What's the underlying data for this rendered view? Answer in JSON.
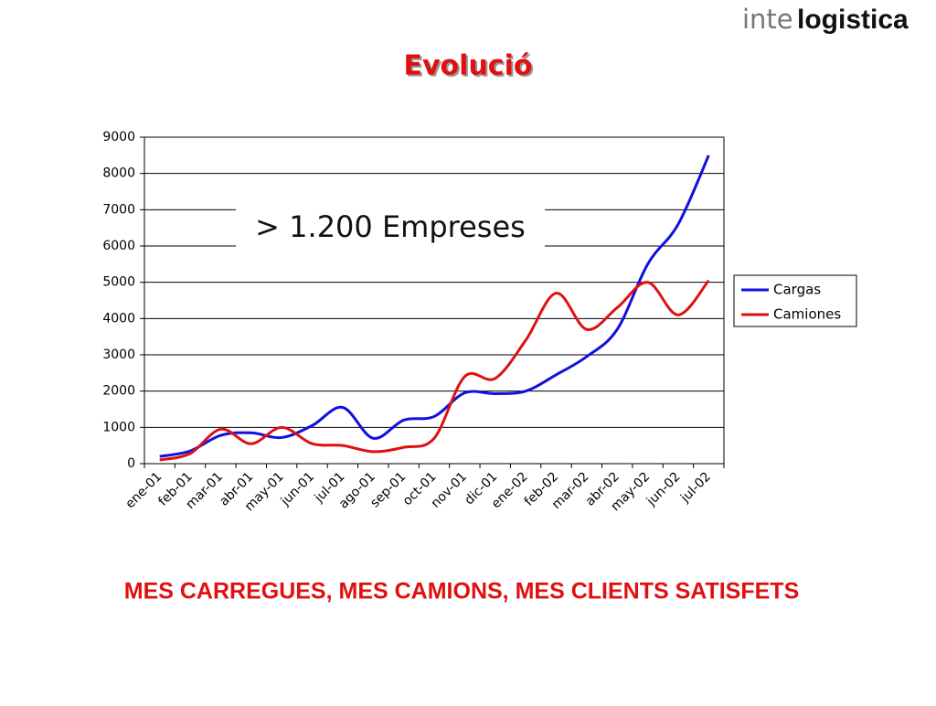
{
  "header": {
    "logo_light": "inte",
    "logo_bold": "logistica"
  },
  "title": "Evolució",
  "annotation": "> 1.200 Empreses",
  "footer": "MES CARREGUES, MES CAMIONS, MES CLIENTS SATISFETS",
  "chart_data": {
    "type": "line",
    "categories": [
      "ene-01",
      "feb-01",
      "mar-01",
      "abr-01",
      "may-01",
      "jun-01",
      "jul-01",
      "ago-01",
      "sep-01",
      "oct-01",
      "nov-01",
      "dic-01",
      "ene-02",
      "feb-02",
      "mar-02",
      "abr-02",
      "may-02",
      "jun-02",
      "jul-02"
    ],
    "series": [
      {
        "name": "Cargas",
        "color": "#1010e0",
        "values": [
          200,
          350,
          780,
          850,
          720,
          1050,
          1550,
          700,
          1200,
          1300,
          1950,
          1930,
          2000,
          2450,
          2950,
          3700,
          5500,
          6600,
          8500
        ]
      },
      {
        "name": "Camiones",
        "color": "#e01010",
        "values": [
          100,
          280,
          950,
          550,
          1000,
          550,
          500,
          330,
          450,
          700,
          2400,
          2350,
          3400,
          4700,
          3700,
          4300,
          5000,
          4100,
          5050
        ]
      }
    ],
    "ylim": [
      0,
      9000
    ],
    "yticks": [
      0,
      1000,
      2000,
      3000,
      4000,
      5000,
      6000,
      7000,
      8000,
      9000
    ],
    "grid": true,
    "legend": "right",
    "smooth": true
  }
}
